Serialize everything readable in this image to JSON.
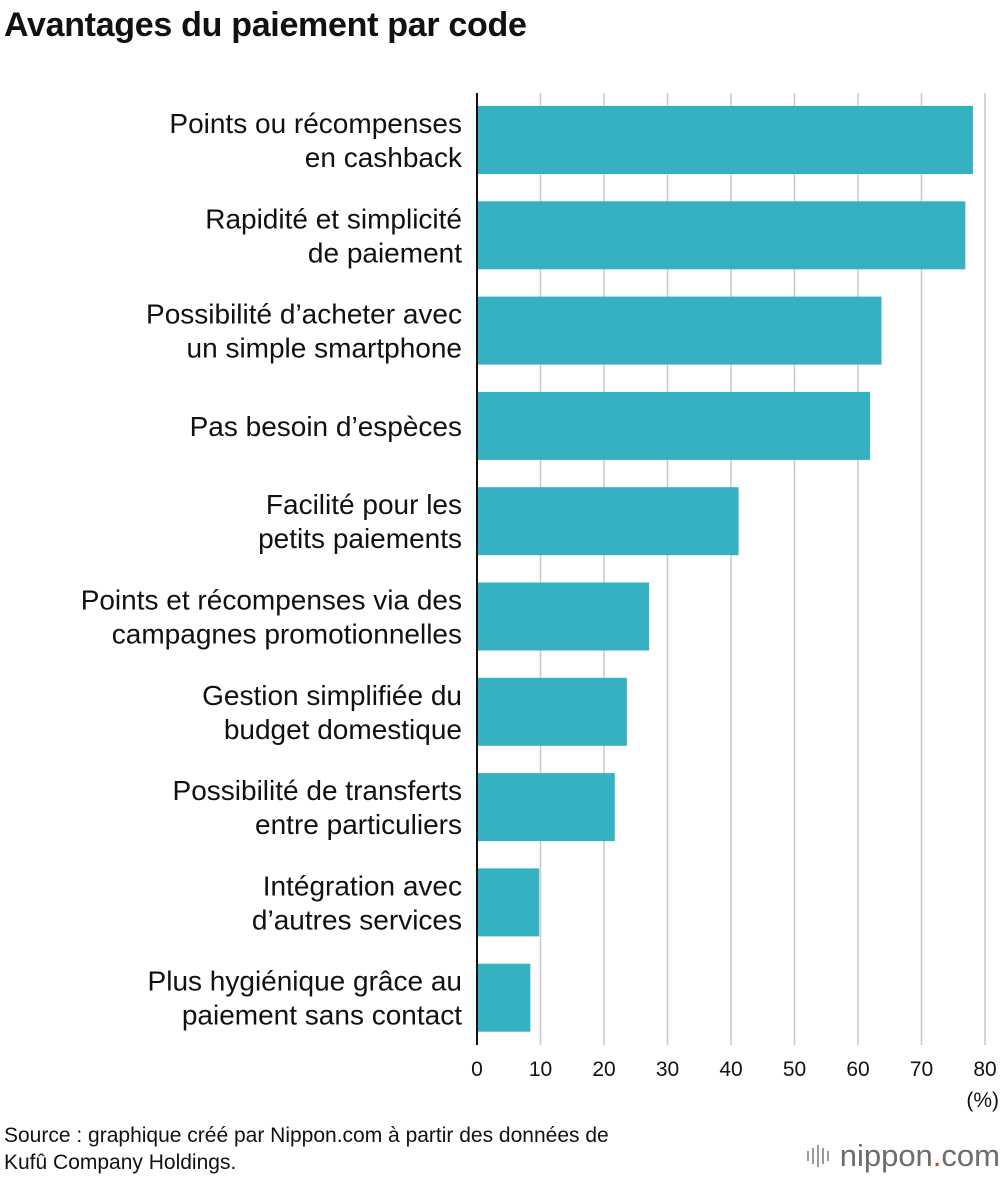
{
  "chart_data": {
    "type": "bar",
    "orientation": "horizontal",
    "title": "Avantages du paiement par code",
    "categories": [
      [
        "Points ou récompenses",
        "en cashback"
      ],
      [
        "Rapidité et simplicité",
        "de paiement"
      ],
      [
        "Possibilité d’acheter avec",
        "un simple smartphone"
      ],
      [
        "Pas besoin d’espèces"
      ],
      [
        "Facilité pour les",
        "petits paiements"
      ],
      [
        "Points et récompenses via des",
        "campagnes promotionnelles"
      ],
      [
        "Gestion simplifiée du",
        "budget domestique"
      ],
      [
        "Possibilité de transferts",
        "entre particuliers"
      ],
      [
        "Intégration avec",
        "d’autres services"
      ],
      [
        "Plus hygiénique grâce au",
        "paiement sans contact"
      ]
    ],
    "values": [
      78.1,
      76.9,
      63.7,
      61.9,
      41.2,
      27.1,
      23.6,
      21.7,
      9.8,
      8.4
    ],
    "xlim": [
      0,
      80
    ],
    "xticks": [
      "0",
      "10",
      "20",
      "30",
      "40",
      "50",
      "60",
      "70",
      "80"
    ],
    "unit_label": "(%)",
    "grid": true,
    "bar_color": "#35b1c1",
    "grid_color": "#c8c8c8"
  },
  "footer": {
    "source_line1": "Source : graphique créé par Nippon.com à partir des données de",
    "source_line2": "Kufû Company Holdings.",
    "logo_main": "nippon",
    "logo_dot": ".",
    "logo_tld": "com"
  }
}
